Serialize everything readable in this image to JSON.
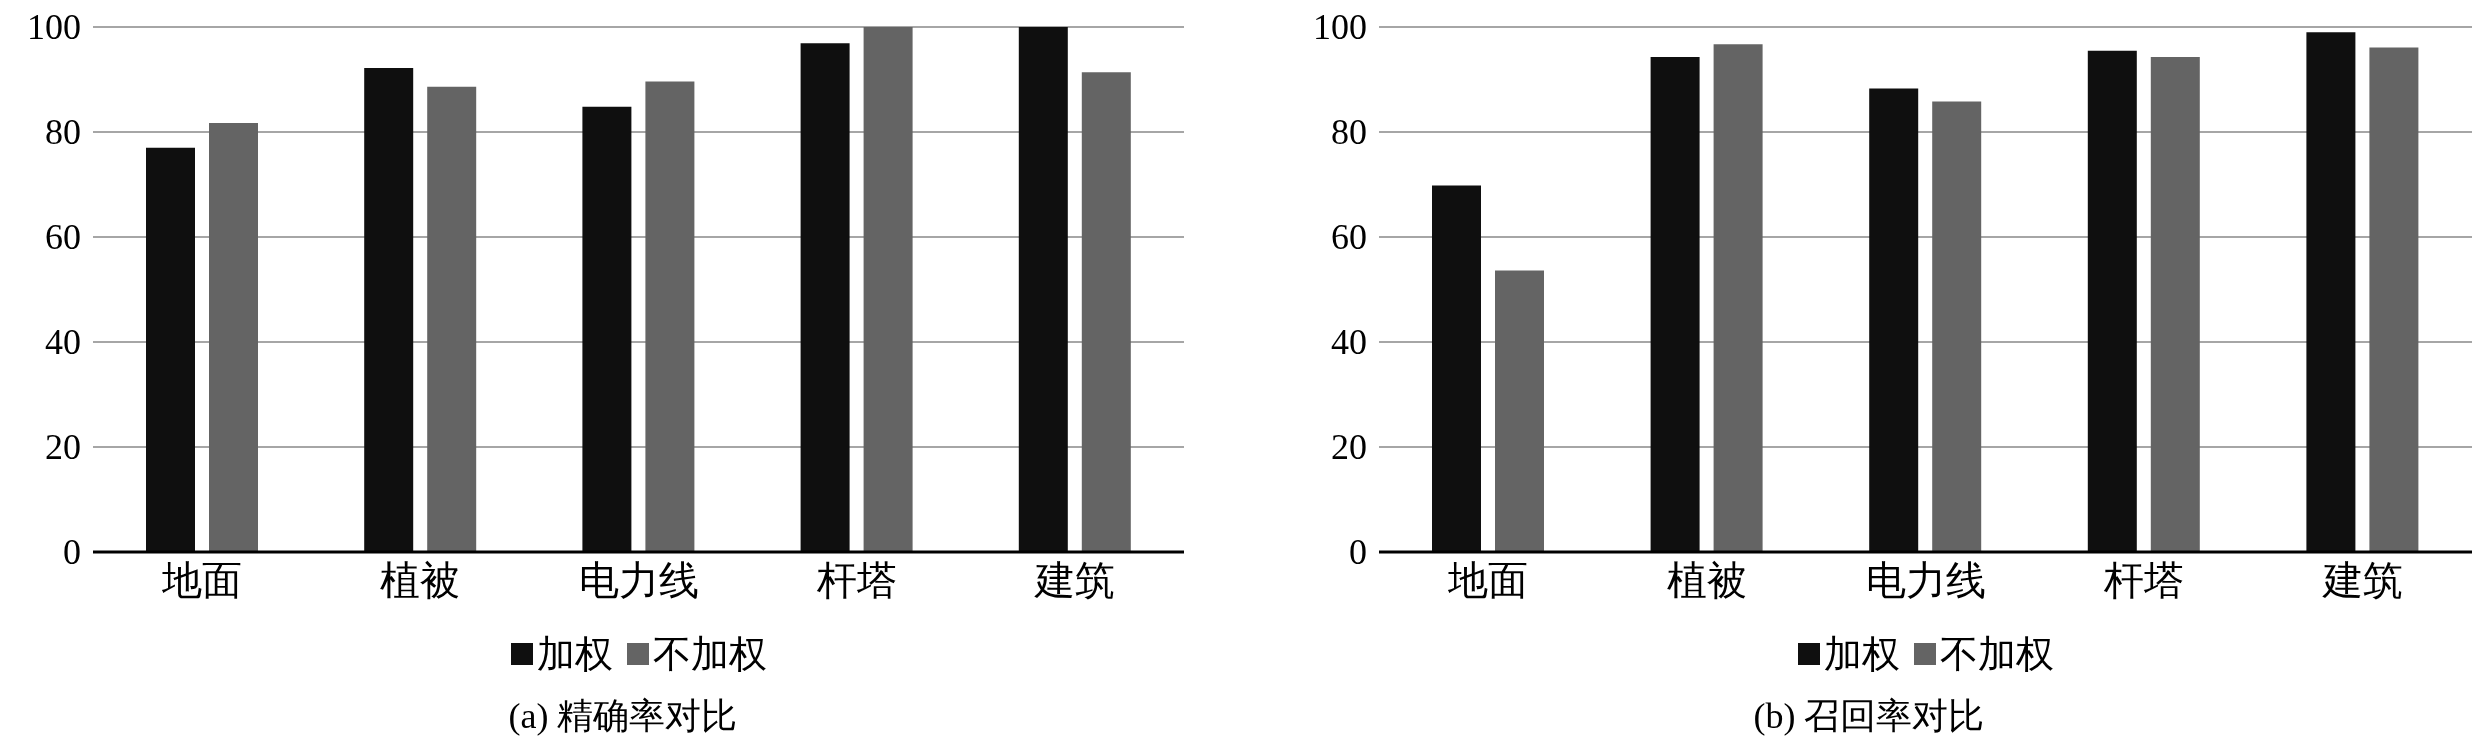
{
  "chart_data": [
    {
      "type": "bar",
      "title": "(a) 精确率对比",
      "categories": [
        "地面",
        "植被",
        "电力线",
        "杆塔",
        "建筑"
      ],
      "series": [
        {
          "name": "加权",
          "color": "#0f0f0f",
          "values": [
            77.0,
            92.2,
            84.8,
            96.9,
            100
          ]
        },
        {
          "name": "不加权",
          "color": "#646464",
          "values": [
            81.7,
            88.6,
            89.6,
            100,
            91.4
          ]
        }
      ],
      "ylim": [
        0,
        100
      ],
      "yticks": [
        0,
        20,
        40,
        60,
        80,
        100
      ],
      "grid": "y",
      "legend": "bottom"
    },
    {
      "type": "bar",
      "title": "(b) 召回率对比",
      "categories": [
        "地面",
        "植被",
        "电力线",
        "杆塔",
        "建筑"
      ],
      "series": [
        {
          "name": "加权",
          "color": "#0f0f0f",
          "values": [
            69.8,
            94.3,
            88.3,
            95.5,
            99.0
          ]
        },
        {
          "name": "不加权",
          "color": "#646464",
          "values": [
            53.6,
            96.7,
            85.8,
            94.3,
            96.1
          ]
        }
      ],
      "ylim": [
        0,
        100
      ],
      "yticks": [
        0,
        20,
        40,
        60,
        80,
        100
      ],
      "grid": "y",
      "legend": "bottom"
    }
  ]
}
